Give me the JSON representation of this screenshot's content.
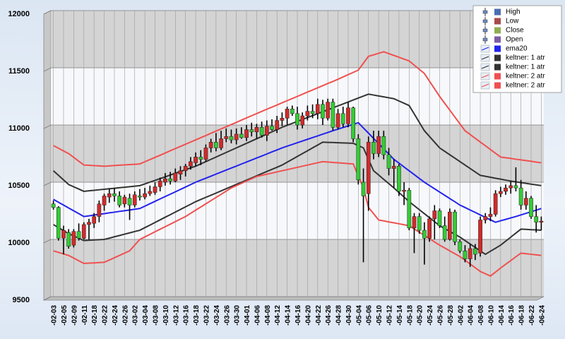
{
  "chart_data": {
    "type": "candlestick",
    "categories": [
      "-02-03",
      null,
      "-02-05",
      null,
      "-02-09",
      null,
      "-02-11",
      null,
      "-02-18",
      null,
      "-02-22",
      null,
      "-02-24",
      null,
      "-02-26",
      null,
      "-03-02",
      null,
      "-03-04",
      null,
      "-03-08",
      null,
      "-03-10",
      null,
      "-03-12",
      null,
      "-03-16",
      null,
      "-03-18",
      null,
      "-03-22",
      null,
      "-03-24",
      null,
      "-03-26",
      null,
      "-03-30",
      null,
      "-04-01",
      null,
      "-04-06",
      null,
      "-04-08",
      null,
      "-04-12",
      null,
      "-04-14",
      null,
      "-04-16",
      null,
      "-04-20",
      null,
      "-04-22",
      null,
      "-04-26",
      null,
      "-04-28",
      null,
      "-04-30",
      null,
      "-05-04",
      null,
      "-05-06",
      null,
      "-05-10",
      null,
      "-05-12",
      null,
      "-05-14",
      null,
      "-05-18",
      null,
      "-05-20",
      null,
      "-05-24",
      null,
      "-05-26",
      null,
      "-05-28",
      null,
      "-06-02",
      null,
      "-06-04",
      null,
      "-06-08",
      null,
      "-06-10",
      null,
      "-06-14",
      null,
      "-06-16",
      null,
      "-06-18",
      null,
      "-06-22",
      null,
      "-06-24"
    ],
    "series": [
      {
        "name": "High",
        "color": "#4a6fb0",
        "role": "high",
        "values": [
          10340,
          10290,
          10120,
          10090,
          10090,
          10140,
          10150,
          10180,
          10230,
          10340,
          10400,
          10440,
          10450,
          10420,
          10390,
          10400,
          10420,
          10440,
          10450,
          10470,
          10500,
          10540,
          10580,
          10590,
          10620,
          10640,
          10660,
          10720,
          10760,
          10780,
          10830,
          10880,
          10930,
          10950,
          10970,
          10960,
          10970,
          10980,
          11000,
          11020,
          11010,
          11030,
          11040,
          11050,
          11080,
          11110,
          11160,
          11170,
          11160,
          11110,
          11170,
          11180,
          11230,
          11220,
          11230,
          11230,
          11140,
          11160,
          11200,
          11160,
          10920,
          10620,
          10900,
          10950,
          10950,
          10950,
          10800,
          10700,
          10660,
          10500,
          10450,
          10230,
          10230,
          10150,
          10200,
          10300,
          10270,
          10200,
          10270,
          10260,
          10000,
          9950,
          9960,
          9960,
          10200,
          10230,
          10280,
          10430,
          10460,
          10480,
          10510,
          10630,
          10520,
          10420,
          10380,
          10300,
          10200
        ]
      },
      {
        "name": "Low",
        "color": "#a84a4a",
        "role": "low",
        "values": [
          10260,
          9990,
          9870,
          9920,
          9930,
          9990,
          10000,
          10000,
          10100,
          10150,
          10250,
          10320,
          10330,
          10280,
          10280,
          10170,
          10280,
          10340,
          10350,
          10380,
          10390,
          10420,
          10470,
          10480,
          10500,
          10520,
          10550,
          10610,
          10640,
          10650,
          10680,
          10760,
          10770,
          10780,
          10850,
          10840,
          10830,
          10880,
          10860,
          10900,
          10880,
          10890,
          10860,
          10950,
          10930,
          10990,
          11000,
          11080,
          10960,
          10970,
          11040,
          11060,
          11050,
          11000,
          11040,
          10950,
          10960,
          10980,
          10980,
          10850,
          10480,
          9800,
          10250,
          10700,
          10720,
          10700,
          10560,
          10450,
          10380,
          10300,
          10080,
          9880,
          10050,
          9780,
          9980,
          10000,
          10100,
          9980,
          9990,
          9950,
          9880,
          9800,
          9760,
          9820,
          9850,
          10140,
          10160,
          10200,
          10370,
          10390,
          10400,
          10420,
          10260,
          10260,
          10180,
          10060,
          10080
        ]
      },
      {
        "name": "Close",
        "color": "#8fae50",
        "role": "close",
        "values": [
          10280,
          10010,
          10080,
          9940,
          10070,
          10010,
          10130,
          10150,
          10200,
          10310,
          10380,
          10400,
          10380,
          10300,
          10370,
          10300,
          10390,
          10370,
          10400,
          10420,
          10460,
          10510,
          10530,
          10510,
          10580,
          10600,
          10640,
          10680,
          10720,
          10700,
          10800,
          10850,
          10800,
          10880,
          10900,
          10870,
          10920,
          10890,
          10960,
          10940,
          10980,
          10910,
          10990,
          10960,
          11040,
          11060,
          11140,
          11100,
          11000,
          11080,
          11120,
          11100,
          11180,
          11060,
          11200,
          10980,
          11100,
          11010,
          11150,
          10880,
          10520,
          10380,
          10850,
          10750,
          10900,
          10740,
          10620,
          10640,
          10420,
          10430,
          10100,
          10200,
          10080,
          10010,
          10180,
          10250,
          10120,
          10000,
          10240,
          9980,
          9900,
          9830,
          9920,
          9870,
          10170,
          10200,
          10220,
          10400,
          10420,
          10450,
          10470,
          10450,
          10300,
          10360,
          10200,
          10150,
          10160
        ]
      },
      {
        "name": "Open",
        "color": "#7c5ca6",
        "role": "open",
        "values": [
          10310,
          10280,
          10010,
          10060,
          9950,
          10070,
          10010,
          10130,
          10140,
          10200,
          10300,
          10370,
          10400,
          10380,
          10310,
          10360,
          10300,
          10380,
          10370,
          10400,
          10410,
          10460,
          10500,
          10530,
          10510,
          10570,
          10600,
          10640,
          10670,
          10720,
          10700,
          10800,
          10850,
          10800,
          10880,
          10900,
          10870,
          10920,
          10890,
          10960,
          10940,
          10980,
          10910,
          10990,
          10960,
          11040,
          11060,
          11140,
          11100,
          11000,
          11080,
          11120,
          11100,
          11180,
          11060,
          11200,
          10980,
          11100,
          11010,
          11150,
          10880,
          10500,
          10400,
          10850,
          10750,
          10900,
          10740,
          10620,
          10640,
          10420,
          10430,
          10100,
          10200,
          10080,
          10010,
          10180,
          10250,
          10120,
          10000,
          10240,
          9980,
          9900,
          9830,
          9920,
          9880,
          10170,
          10200,
          10220,
          10400,
          10420,
          10450,
          10470,
          10450,
          10300,
          10360,
          10200,
          10150
        ]
      },
      {
        "name": "ema20",
        "color": "#2222ee",
        "role": "line",
        "values": [
          10350,
          10325,
          10300,
          10275,
          10250,
          10225,
          10200,
          10206,
          10213,
          10219,
          10225,
          10232,
          10238,
          10245,
          10251,
          10257,
          10264,
          10270,
          10291,
          10312,
          10333,
          10354,
          10375,
          10395,
          10416,
          10437,
          10458,
          10479,
          10500,
          10518,
          10535,
          10553,
          10571,
          10588,
          10606,
          10624,
          10641,
          10659,
          10676,
          10694,
          10712,
          10729,
          10747,
          10765,
          10782,
          10800,
          10815,
          10830,
          10845,
          10860,
          10875,
          10890,
          10905,
          10920,
          10935,
          10950,
          10964,
          10978,
          10992,
          11006,
          11020,
          10974,
          10929,
          10883,
          10837,
          10791,
          10746,
          10700,
          10667,
          10633,
          10600,
          10567,
          10533,
          10500,
          10471,
          10443,
          10414,
          10386,
          10357,
          10329,
          10300,
          10279,
          10257,
          10236,
          10214,
          10193,
          10171,
          10150,
          10163,
          10175,
          10188,
          10200,
          10214,
          10228,
          10242,
          10256,
          10270
        ]
      },
      {
        "name": "keltner: 1 atr",
        "color": "#333333",
        "role": "line",
        "values": [
          10600,
          10560,
          10520,
          10480,
          10460,
          10440,
          10420,
          10425,
          10429,
          10434,
          10438,
          10443,
          10447,
          10452,
          10456,
          10461,
          10465,
          10470,
          10485,
          10501,
          10516,
          10532,
          10547,
          10563,
          10578,
          10594,
          10609,
          10625,
          10640,
          10660,
          10680,
          10700,
          10720,
          10740,
          10760,
          10780,
          10800,
          10820,
          10840,
          10860,
          10880,
          10900,
          10920,
          10940,
          10960,
          10980,
          10997,
          11014,
          11031,
          11048,
          11065,
          11082,
          11099,
          11116,
          11133,
          11150,
          11167,
          11184,
          11201,
          11219,
          11236,
          11253,
          11270,
          11262,
          11254,
          11246,
          11238,
          11230,
          11210,
          11190,
          11170,
          11097,
          11023,
          10950,
          10900,
          10850,
          10800,
          10770,
          10740,
          10710,
          10680,
          10650,
          10620,
          10590,
          10560,
          10552,
          10543,
          10535,
          10527,
          10518,
          10510,
          10503,
          10497,
          10490,
          10483,
          10477,
          10470
        ]
      },
      {
        "name": "keltner: 1 atr",
        "color": "#333333",
        "role": "line",
        "values": [
          10130,
          10103,
          10077,
          10050,
          10030,
          10010,
          9990,
          9993,
          9995,
          9998,
          10000,
          10011,
          10023,
          10034,
          10046,
          10057,
          10069,
          10080,
          10103,
          10125,
          10148,
          10171,
          10194,
          10216,
          10239,
          10262,
          10285,
          10307,
          10330,
          10349,
          10368,
          10386,
          10405,
          10424,
          10443,
          10462,
          10481,
          10499,
          10518,
          10537,
          10556,
          10575,
          10594,
          10612,
          10631,
          10650,
          10675,
          10700,
          10725,
          10750,
          10775,
          10800,
          10825,
          10850,
          10848,
          10847,
          10845,
          10843,
          10842,
          10840,
          10820,
          10800,
          10700,
          10600,
          10563,
          10525,
          10488,
          10450,
          10410,
          10370,
          10330,
          10295,
          10260,
          10225,
          10190,
          10155,
          10120,
          10095,
          10070,
          10045,
          10020,
          9990,
          9960,
          9930,
          9900,
          9870,
          9897,
          9923,
          9950,
          9985,
          10020,
          10055,
          10090,
          10088,
          10085,
          10083,
          10080
        ]
      },
      {
        "name": "keltner: 2 atr",
        "color": "#f05050",
        "role": "line",
        "values": [
          10820,
          10797,
          10773,
          10750,
          10717,
          10683,
          10650,
          10648,
          10645,
          10643,
          10640,
          10643,
          10646,
          10649,
          10651,
          10654,
          10657,
          10660,
          10679,
          10698,
          10717,
          10736,
          10755,
          10775,
          10794,
          10813,
          10832,
          10851,
          10870,
          10889,
          10908,
          10928,
          10947,
          10966,
          10985,
          11004,
          11023,
          11043,
          11062,
          11081,
          11100,
          11119,
          11138,
          11156,
          11175,
          11194,
          11213,
          11231,
          11250,
          11269,
          11288,
          11306,
          11325,
          11344,
          11363,
          11381,
          11400,
          11420,
          11440,
          11460,
          11480,
          11540,
          11600,
          11613,
          11627,
          11640,
          11624,
          11608,
          11592,
          11576,
          11560,
          11523,
          11487,
          11450,
          11383,
          11317,
          11250,
          11190,
          11130,
          11070,
          11010,
          10950,
          10917,
          10884,
          10851,
          10819,
          10786,
          10753,
          10720,
          10714,
          10708,
          10701,
          10695,
          10689,
          10683,
          10676,
          10670
        ]
      },
      {
        "name": "keltner: 2 atr",
        "color": "#f05050",
        "role": "line",
        "values": [
          9900,
          9887,
          9873,
          9860,
          9837,
          9813,
          9790,
          9793,
          9795,
          9798,
          9800,
          9820,
          9840,
          9860,
          9880,
          9900,
          9950,
          10000,
          10022,
          10044,
          10067,
          10089,
          10111,
          10133,
          10156,
          10178,
          10200,
          10228,
          10256,
          10283,
          10311,
          10339,
          10367,
          10394,
          10422,
          10450,
          10470,
          10490,
          10510,
          10530,
          10550,
          10560,
          10570,
          10580,
          10590,
          10600,
          10610,
          10620,
          10630,
          10640,
          10650,
          10660,
          10670,
          10680,
          10677,
          10673,
          10670,
          10667,
          10663,
          10660,
          10555,
          10450,
          10280,
          10225,
          10170,
          10162,
          10153,
          10145,
          10137,
          10128,
          10120,
          10092,
          10063,
          10035,
          10007,
          9978,
          9950,
          9925,
          9900,
          9875,
          9850,
          9818,
          9785,
          9753,
          9720,
          9700,
          9680,
          9715,
          9750,
          9783,
          9815,
          9848,
          9880,
          9875,
          9870,
          9865,
          9860
        ]
      }
    ],
    "up_color": "#d02a2a",
    "down_color": "#33cc33",
    "ylim": [
      9500,
      12000
    ],
    "yticks": [
      9500,
      10000,
      10500,
      11000,
      11500,
      12000
    ],
    "grid": true,
    "legend": "upper right"
  }
}
